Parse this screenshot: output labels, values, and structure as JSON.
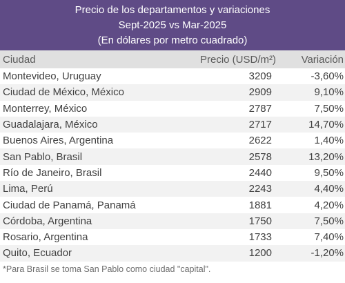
{
  "header": {
    "title": "Precio de los departamentos y variaciones",
    "subtitle": "Sept-2025 vs Mar-2025",
    "unit_note": "(En dólares por metro cuadrado)"
  },
  "table": {
    "columns": [
      "Ciudad",
      "Precio (USD/m²)",
      "Variación"
    ],
    "rows": [
      {
        "city": "Montevideo, Uruguay",
        "price": "3209",
        "variation": "-3,60%"
      },
      {
        "city": "Ciudad de México, México",
        "price": "2909",
        "variation": "9,10%"
      },
      {
        "city": "Monterrey, México",
        "price": "2787",
        "variation": "7,50%"
      },
      {
        "city": "Guadalajara, México",
        "price": "2717",
        "variation": "14,70%"
      },
      {
        "city": "Buenos Aires, Argentina",
        "price": "2622",
        "variation": "1,40%"
      },
      {
        "city": "San Pablo, Brasil",
        "price": "2578",
        "variation": "13,20%"
      },
      {
        "city": "Río de Janeiro, Brasil",
        "price": "2440",
        "variation": "9,50%"
      },
      {
        "city": "Lima, Perú",
        "price": "2243",
        "variation": "4,40%"
      },
      {
        "city": "Ciudad de Panamá, Panamá",
        "price": "1881",
        "variation": "4,20%"
      },
      {
        "city": "Córdoba, Argentina",
        "price": "1750",
        "variation": "7,50%"
      },
      {
        "city": "Rosario, Argentina",
        "price": "1733",
        "variation": "7,40%"
      },
      {
        "city": "Quito, Ecuador",
        "price": "1200",
        "variation": "-1,20%"
      }
    ]
  },
  "footnote": "*Para Brasil se toma San Pablo como ciudad \"capital\".",
  "colors": {
    "header_bg": "#5f4b86",
    "column_header_bg": "#e0e0e0",
    "stripe": "#f2f2f2"
  }
}
